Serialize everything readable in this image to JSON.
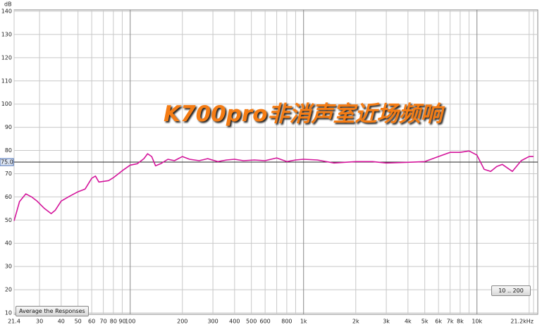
{
  "chart_data": {
    "type": "line",
    "y_label": "dB",
    "annotation": "K700pro非消声室近场频响",
    "button": "Average the Responses",
    "range_box": "10 .. 200",
    "log_x": true,
    "grid": true,
    "x": [
      21.4,
      23,
      25,
      27,
      29,
      32,
      35,
      37,
      40,
      45,
      50,
      55,
      60,
      63,
      66,
      75,
      80,
      90,
      100,
      110,
      120,
      126,
      133,
      140,
      150,
      165,
      180,
      200,
      220,
      250,
      280,
      320,
      360,
      400,
      450,
      520,
      600,
      700,
      800,
      900,
      1000,
      1200,
      1500,
      2000,
      2500,
      3000,
      4000,
      5000,
      6000,
      7000,
      8000,
      9000,
      10000,
      11000,
      12000,
      13000,
      14000,
      16000,
      18000,
      20000,
      21200
    ],
    "series": [
      {
        "name": "K700pro",
        "color": "#d4159b",
        "values": [
          49.7,
          58,
          61.3,
          60,
          58.2,
          55,
          52.8,
          54.3,
          58.2,
          60.4,
          62.2,
          63.4,
          68,
          69,
          66.4,
          67,
          68.3,
          71.3,
          73.7,
          74.3,
          76.5,
          78.6,
          77.4,
          73.4,
          74.3,
          76.2,
          75.6,
          77.4,
          76.2,
          75.6,
          76.5,
          75.2,
          75.9,
          76.2,
          75.6,
          75.9,
          75.6,
          76.8,
          75.2,
          75.9,
          76.2,
          75.9,
          74.6,
          75.2,
          75.2,
          74.6,
          74.9,
          75.2,
          77.4,
          79.2,
          79.2,
          79.8,
          78,
          71.9,
          71,
          73.1,
          74,
          71,
          75.6,
          77.4,
          77.4
        ]
      }
    ],
    "reference": {
      "value": 75,
      "label": "75.0"
    },
    "xlim": [
      21.4,
      21200
    ],
    "xticks": [
      {
        "value": 21.4,
        "label": "21.4"
      },
      30,
      40,
      50,
      60,
      70,
      80,
      90,
      100,
      200,
      300,
      400,
      500,
      600,
      800,
      {
        "value": 1000,
        "label": "1k"
      },
      {
        "value": 2000,
        "label": "2k"
      },
      {
        "value": 3000,
        "label": "3k"
      },
      {
        "value": 4000,
        "label": "4k"
      },
      {
        "value": 5000,
        "label": "5k"
      },
      {
        "value": 6000,
        "label": "6k"
      },
      {
        "value": 7000,
        "label": "7k"
      },
      {
        "value": 8000,
        "label": "8k"
      },
      {
        "value": 10000,
        "label": "10k"
      },
      {
        "value": 21200,
        "label": "21.2kHz"
      }
    ],
    "xminor": [
      700,
      900,
      9000,
      20000
    ],
    "ylim": [
      10,
      140
    ],
    "yticks": [
      10,
      20,
      30,
      40,
      50,
      60,
      70,
      80,
      90,
      100,
      110,
      120,
      130,
      140
    ]
  }
}
